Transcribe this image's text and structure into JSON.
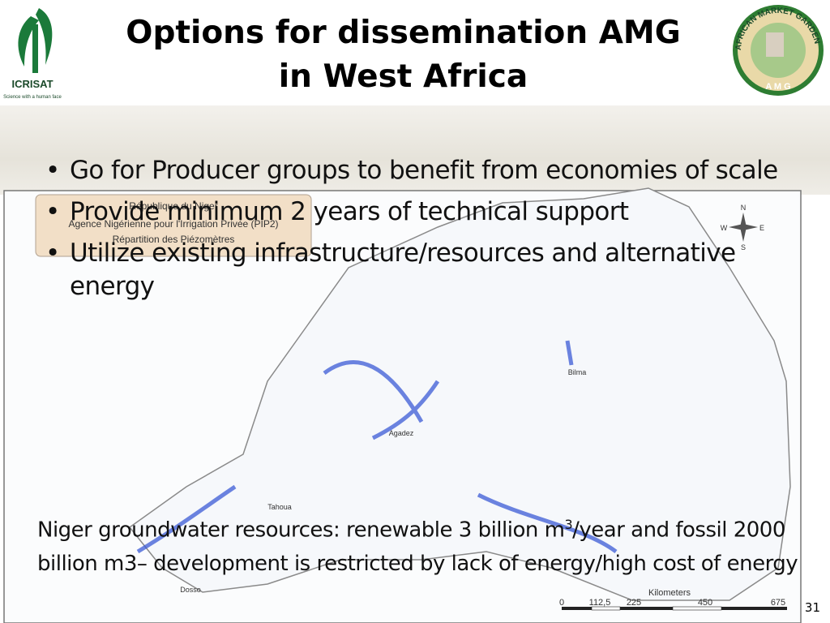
{
  "header": {
    "title_line1": "Options for dissemination AMG",
    "title_line2": "in West Africa",
    "left_logo": {
      "name": "ICRISAT",
      "tagline": "Science with a human face"
    },
    "right_logo": {
      "ring": "AFRICAN MARKET GARDEN",
      "initials": "A M G"
    }
  },
  "bullets": [
    "Go for Producer groups to benefit from economies of scale",
    "Provide minimum 2 years of technical support",
    "Utilize existing infrastructure/resources and alternative energy"
  ],
  "map": {
    "legend": [
      "République du Niger",
      "Agence Nigérienne pour l'Irrigation Privée (PIP2)",
      "Répartition des Piézomètres"
    ],
    "places": [
      "Bilma",
      "Agadez",
      "Tahoua",
      "Dosso"
    ],
    "compass": [
      "N",
      "W",
      "E",
      "S"
    ],
    "scale_title": "Kilometers",
    "scale_labels": [
      "0",
      "112,5",
      "225",
      "450",
      "675"
    ]
  },
  "note": {
    "before": "Niger groundwater resources: renewable 3 billion m",
    "superscript": "3",
    "after": "/year and fossil 2000 billion m3– development is restricted by lack of energy/high cost of energy"
  },
  "page_number": "31"
}
